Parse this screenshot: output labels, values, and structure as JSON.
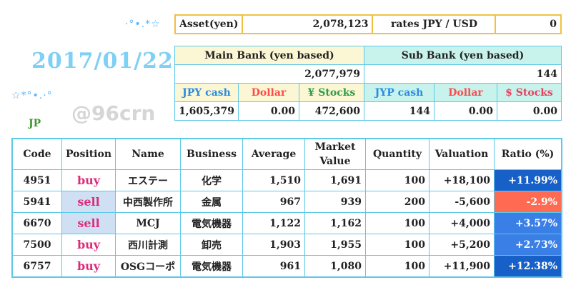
{
  "date": "2017/01/22",
  "market_label": "JP",
  "watermark": "@96crn",
  "decorations": {
    "top": "·°•.*☆",
    "bottom": "☆*°•.·°"
  },
  "asset": {
    "label": "Asset(yen)",
    "value": "2,078,123",
    "rate_label": "rates  JPY / USD",
    "rate_value": "0"
  },
  "main_bank": {
    "title": "Main Bank (yen based)",
    "total": "2,077,979",
    "headers": [
      "JPY cash",
      "Dollar",
      "¥ Stocks"
    ],
    "values": [
      "1,605,379",
      "0.00",
      "472,600"
    ]
  },
  "sub_bank": {
    "title": "Sub Bank (yen based)",
    "total": "144",
    "headers": [
      "JYP cash",
      "Dollar",
      "$ Stocks"
    ],
    "values": [
      "144",
      "0.00",
      "0.00"
    ]
  },
  "holdings": {
    "headers": [
      "Code",
      "Position",
      "Name",
      "Business",
      "Average",
      "Market Value",
      "Quantity",
      "Valuation",
      "Ratio (%)"
    ],
    "rows": [
      [
        "4951",
        "buy",
        "エステー",
        "化学",
        "1,510",
        "1,691",
        "100",
        "+18,100",
        "+11.99%"
      ],
      [
        "5941",
        "sell",
        "中西製作所",
        "金属",
        "967",
        "939",
        "200",
        "-5,600",
        "-2.9%"
      ],
      [
        "6670",
        "sell",
        "MCJ",
        "電気機器",
        "1,122",
        "1,162",
        "100",
        "+4,000",
        "+3.57%"
      ],
      [
        "7500",
        "buy",
        "西川計測",
        "卸売",
        "1,903",
        "1,955",
        "100",
        "+5,200",
        "+2.73%"
      ],
      [
        "6757",
        "buy",
        "OSGコーポ",
        "電気機器",
        "961",
        "1,080",
        "100",
        "+11,900",
        "+12.38%"
      ]
    ]
  }
}
